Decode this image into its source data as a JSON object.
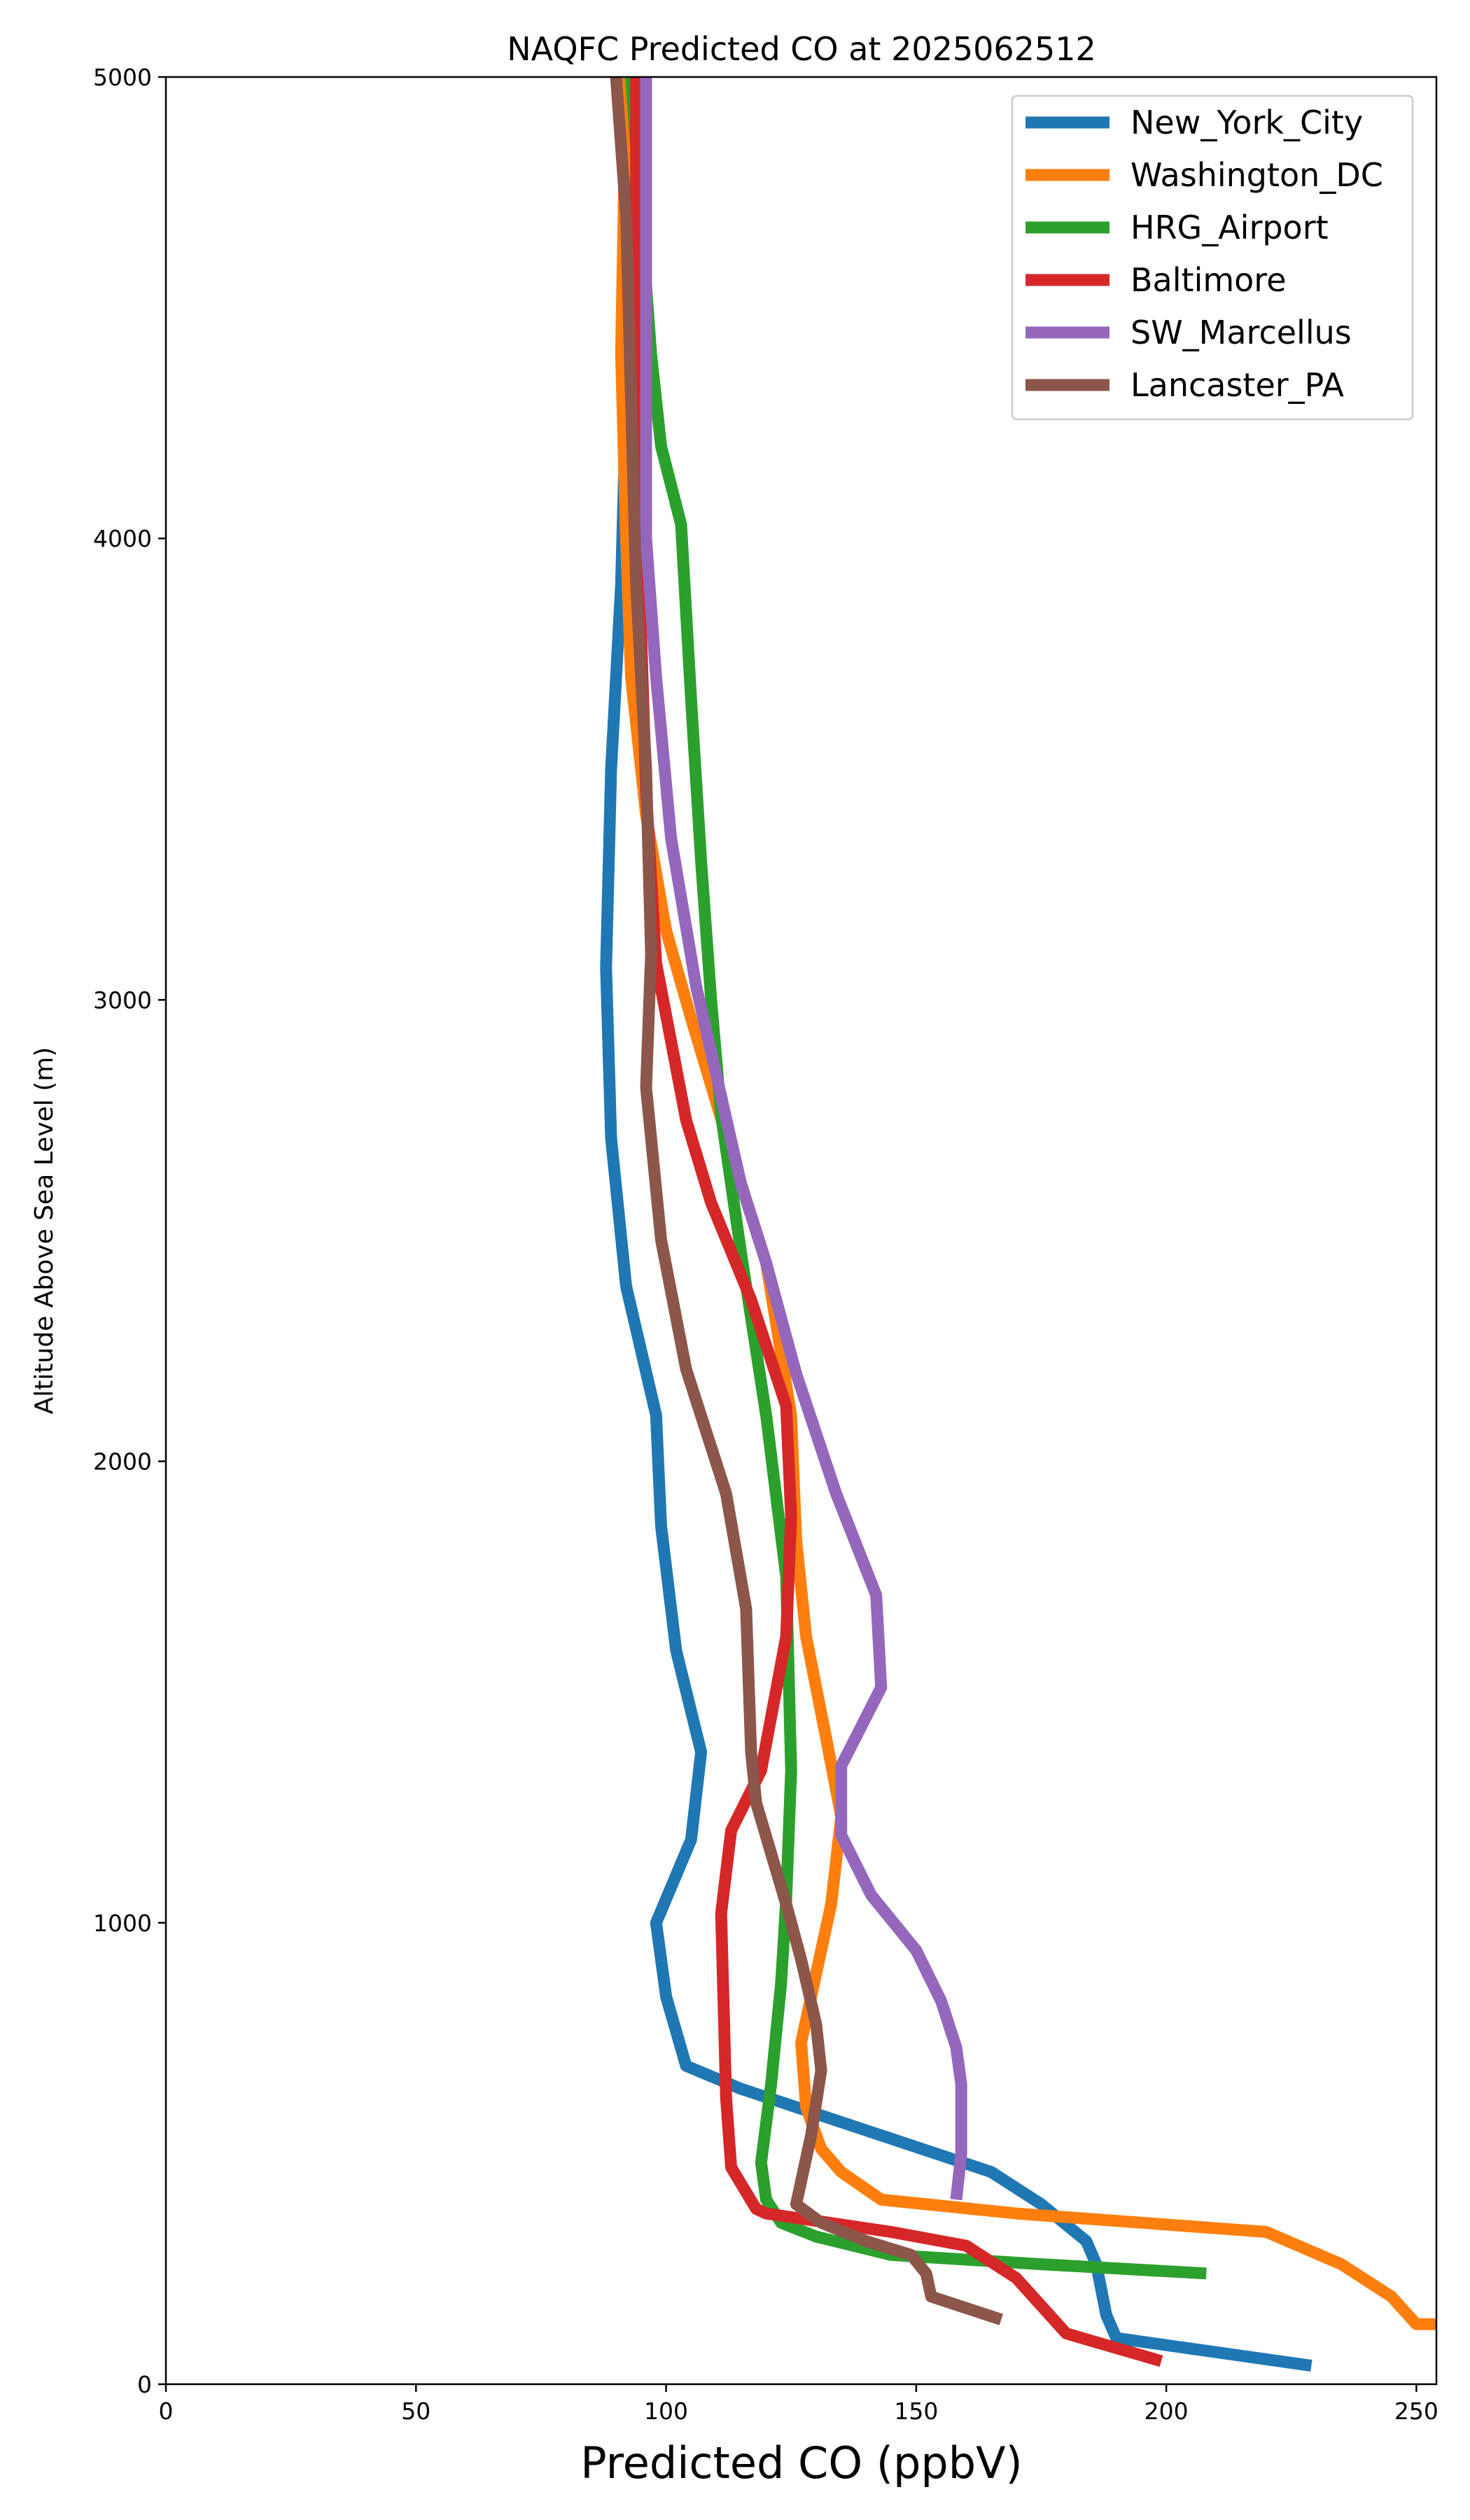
{
  "chart_data": {
    "type": "line",
    "title": "NAQFC Predicted CO at 2025062512",
    "xlabel": "Predicted CO (ppbV)",
    "ylabel": "Altitude Above Sea Level (m)",
    "xlim": [
      0,
      254
    ],
    "ylim": [
      0,
      5000
    ],
    "xticks": [
      0,
      50,
      100,
      150,
      200,
      250
    ],
    "yticks": [
      0,
      1000,
      2000,
      3000,
      4000,
      5000
    ],
    "grid": false,
    "legend_position": "top-right",
    "series": [
      {
        "name": "New_York_City",
        "color": "#1f77b4",
        "points": [
          [
            229,
            40
          ],
          [
            190,
            100
          ],
          [
            188,
            150
          ],
          [
            186,
            260
          ],
          [
            184,
            310
          ],
          [
            175,
            390
          ],
          [
            165,
            460
          ],
          [
            140,
            550
          ],
          [
            115,
            640
          ],
          [
            104,
            690
          ],
          [
            100,
            840
          ],
          [
            98,
            1000
          ],
          [
            105,
            1180
          ],
          [
            107,
            1370
          ],
          [
            102,
            1590
          ],
          [
            99,
            1860
          ],
          [
            98,
            2100
          ],
          [
            92,
            2380
          ],
          [
            89,
            2700
          ],
          [
            88,
            3070
          ],
          [
            89,
            3500
          ],
          [
            91,
            3900
          ],
          [
            92,
            4300
          ],
          [
            93,
            5000
          ]
        ]
      },
      {
        "name": "Washington_DC",
        "color": "#ff7f0e",
        "points": [
          [
            254,
            130
          ],
          [
            250,
            130
          ],
          [
            245,
            190
          ],
          [
            235,
            260
          ],
          [
            220,
            330
          ],
          [
            170,
            370
          ],
          [
            143,
            400
          ],
          [
            135,
            460
          ],
          [
            131,
            510
          ],
          [
            128,
            600
          ],
          [
            127,
            740
          ],
          [
            133,
            1040
          ],
          [
            135,
            1230
          ],
          [
            132,
            1400
          ],
          [
            128,
            1620
          ],
          [
            126,
            1830
          ],
          [
            125,
            2100
          ],
          [
            120,
            2430
          ],
          [
            113,
            2670
          ],
          [
            105,
            2960
          ],
          [
            100,
            3150
          ],
          [
            96,
            3400
          ],
          [
            93,
            3700
          ],
          [
            92,
            4000
          ],
          [
            91,
            4400
          ],
          [
            92,
            5000
          ]
        ]
      },
      {
        "name": "HRG_Airport",
        "color": "#2ca02c",
        "points": [
          [
            208,
            240
          ],
          [
            175,
            260
          ],
          [
            145,
            280
          ],
          [
            130,
            320
          ],
          [
            123,
            350
          ],
          [
            120,
            400
          ],
          [
            119,
            480
          ],
          [
            121,
            650
          ],
          [
            123,
            870
          ],
          [
            124,
            1050
          ],
          [
            125,
            1330
          ],
          [
            124,
            1750
          ],
          [
            120,
            2100
          ],
          [
            115,
            2450
          ],
          [
            111,
            2750
          ],
          [
            109,
            3000
          ],
          [
            107,
            3300
          ],
          [
            105,
            3650
          ],
          [
            103,
            4030
          ],
          [
            99,
            4200
          ],
          [
            97,
            4400
          ],
          [
            95,
            4700
          ],
          [
            93,
            5000
          ]
        ]
      },
      {
        "name": "Baltimore",
        "color": "#d62728",
        "points": [
          [
            199,
            50
          ],
          [
            180,
            110
          ],
          [
            170,
            230
          ],
          [
            160,
            300
          ],
          [
            145,
            330
          ],
          [
            120,
            370
          ],
          [
            118,
            380
          ],
          [
            113,
            470
          ],
          [
            112,
            620
          ],
          [
            111,
            1020
          ],
          [
            113,
            1200
          ],
          [
            119,
            1330
          ],
          [
            124,
            1620
          ],
          [
            125,
            1880
          ],
          [
            124,
            2120
          ],
          [
            117,
            2350
          ],
          [
            109,
            2560
          ],
          [
            104,
            2740
          ],
          [
            98,
            3080
          ],
          [
            96,
            3450
          ],
          [
            95,
            3800
          ],
          [
            94,
            4300
          ],
          [
            94,
            5000
          ]
        ]
      },
      {
        "name": "SW_Marcellus",
        "color": "#9467bd",
        "points": [
          [
            158,
            400
          ],
          [
            159,
            500
          ],
          [
            159,
            650
          ],
          [
            158,
            730
          ],
          [
            155,
            830
          ],
          [
            150,
            940
          ],
          [
            141,
            1060
          ],
          [
            135,
            1190
          ],
          [
            135,
            1340
          ],
          [
            143,
            1510
          ],
          [
            142,
            1710
          ],
          [
            134,
            1930
          ],
          [
            126,
            2190
          ],
          [
            120,
            2430
          ],
          [
            115,
            2600
          ],
          [
            106,
            3030
          ],
          [
            101,
            3350
          ],
          [
            98,
            3700
          ],
          [
            96,
            4000
          ],
          [
            96,
            4400
          ],
          [
            96,
            5000
          ]
        ]
      },
      {
        "name": "Lancaster_PA",
        "color": "#8c564b",
        "points": [
          [
            167,
            140
          ],
          [
            153,
            190
          ],
          [
            152,
            240
          ],
          [
            149,
            280
          ],
          [
            140,
            310
          ],
          [
            131,
            350
          ],
          [
            126,
            390
          ],
          [
            127,
            440
          ],
          [
            129,
            540
          ],
          [
            131,
            680
          ],
          [
            130,
            780
          ],
          [
            127,
            920
          ],
          [
            124,
            1040
          ],
          [
            118,
            1260
          ],
          [
            117,
            1370
          ],
          [
            116,
            1680
          ],
          [
            112,
            1930
          ],
          [
            104,
            2200
          ],
          [
            99,
            2480
          ],
          [
            96,
            2810
          ],
          [
            97,
            3100
          ],
          [
            96,
            3500
          ],
          [
            94,
            3900
          ],
          [
            93,
            4300
          ],
          [
            92,
            4700
          ],
          [
            90,
            5000
          ]
        ]
      }
    ]
  }
}
